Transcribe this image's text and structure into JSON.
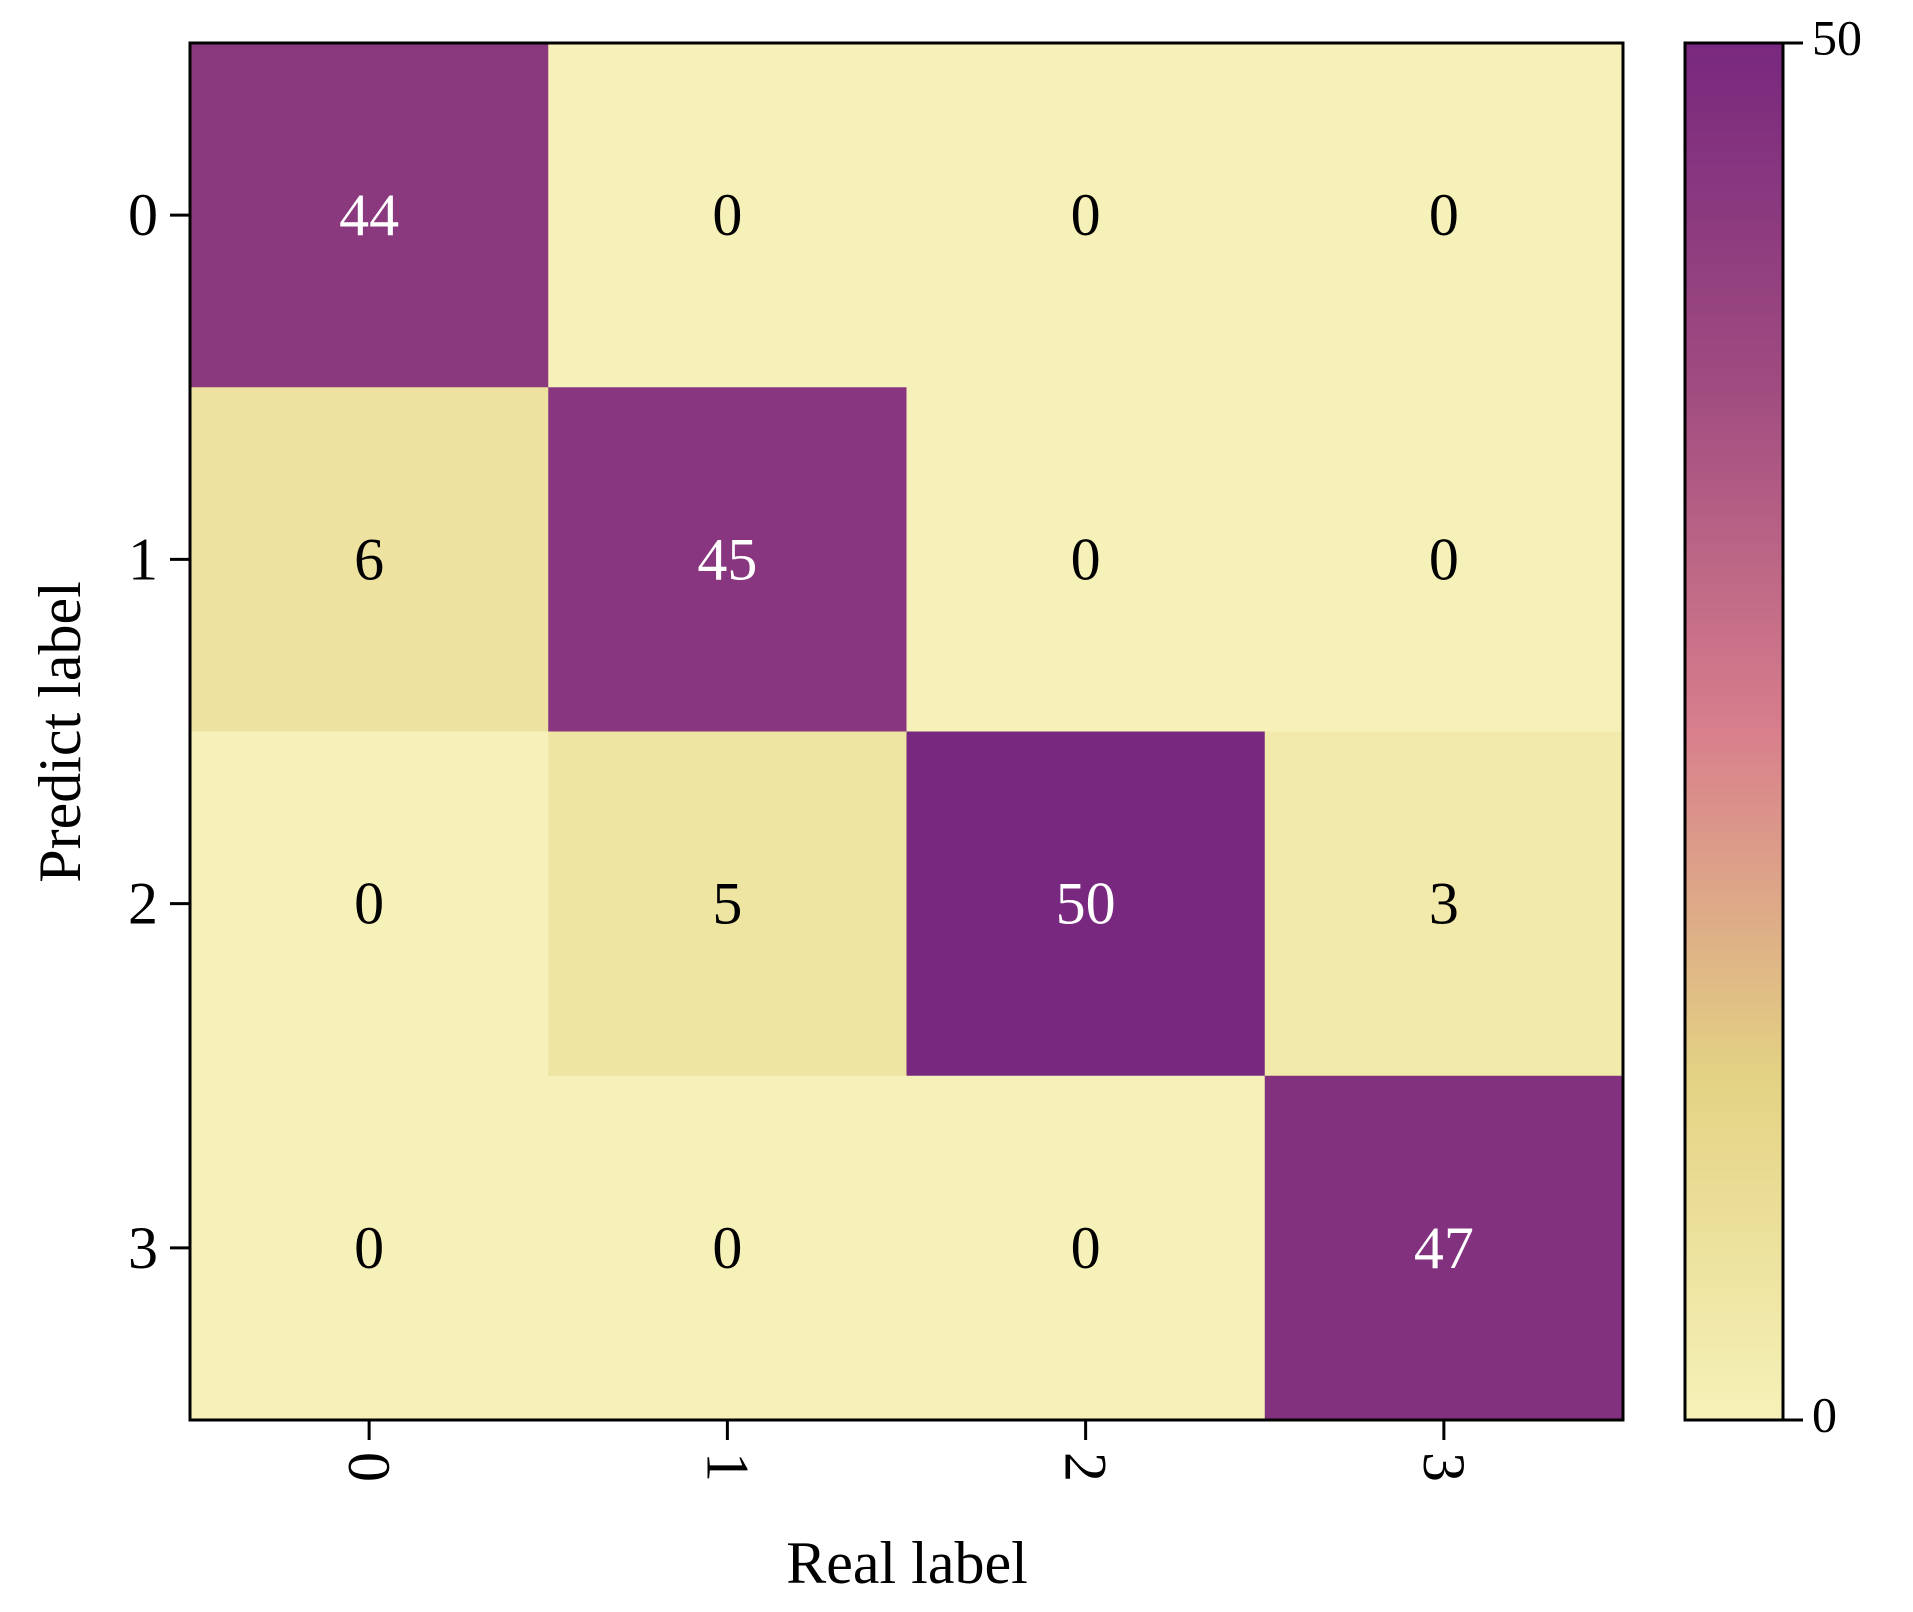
{
  "chart_data": {
    "type": "heatmap",
    "xlabel": "Real label",
    "ylabel": "Predict label",
    "x_categories": [
      "0",
      "1",
      "2",
      "3"
    ],
    "y_categories": [
      "0",
      "1",
      "2",
      "3"
    ],
    "matrix": [
      [
        44,
        0,
        0,
        0
      ],
      [
        6,
        45,
        0,
        0
      ],
      [
        0,
        5,
        50,
        3
      ],
      [
        0,
        0,
        0,
        47
      ]
    ],
    "colorbar": {
      "min": 0,
      "max": 50,
      "tick_labels": [
        "0",
        "50"
      ],
      "colors": [
        "#f6f1b8",
        "#e3d283",
        "#d87f8c",
        "#a04c80",
        "#78287e"
      ]
    },
    "grid": false,
    "legend": "none"
  }
}
